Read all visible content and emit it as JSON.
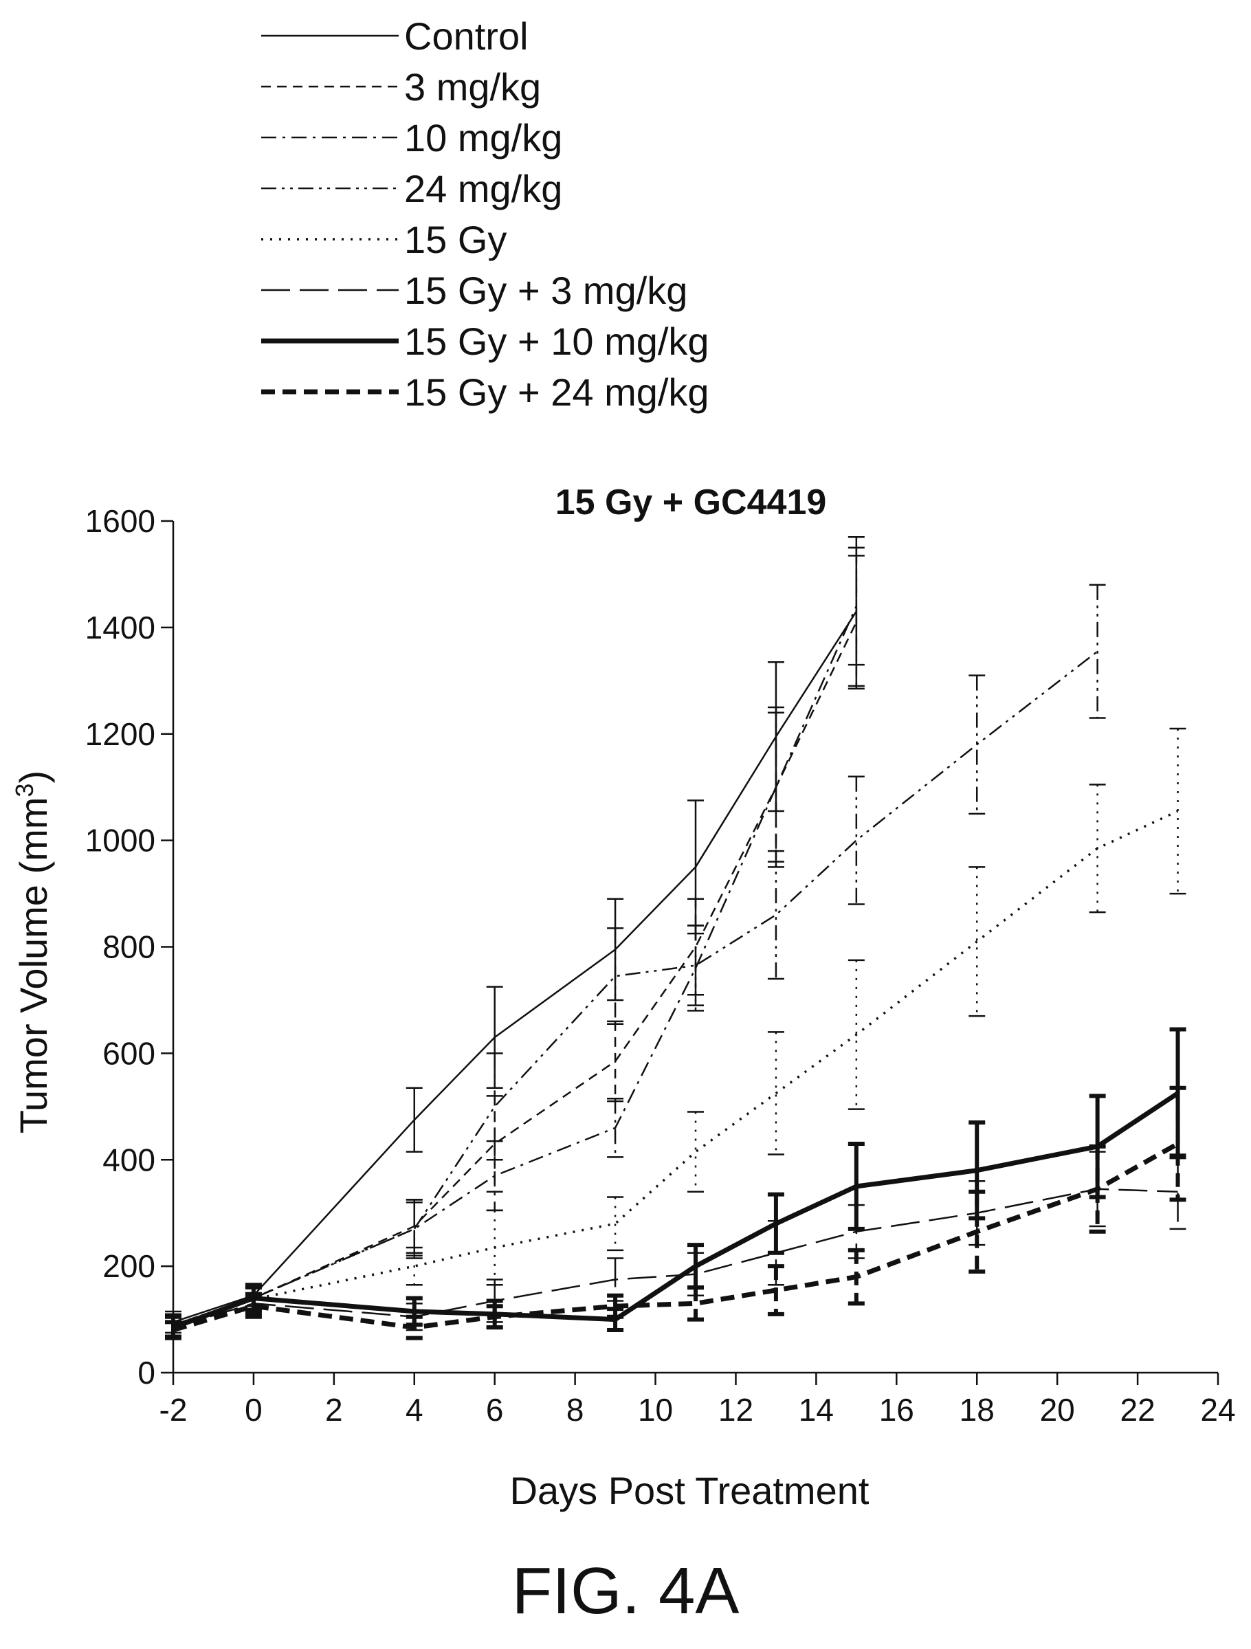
{
  "figure_label": "FIG. 4A",
  "chart_data": {
    "type": "line",
    "title": "15 Gy + GC4419",
    "xlabel": "Days Post Treatment",
    "ylabel": "Tumor Volume (mm",
    "ylabel_superscript": "3",
    "ylabel_close": ")",
    "xlim": [
      -2,
      24
    ],
    "ylim": [
      0,
      1600
    ],
    "xticks": [
      -2,
      0,
      2,
      4,
      6,
      8,
      10,
      12,
      14,
      16,
      18,
      20,
      22,
      24
    ],
    "yticks": [
      0,
      200,
      400,
      600,
      800,
      1000,
      1200,
      1400,
      1600
    ],
    "legend_position": "top",
    "series": [
      {
        "name": "Control",
        "line_style": "solid-thin",
        "x": [
          -2,
          0,
          4,
          6,
          9,
          11,
          13,
          15
        ],
        "y": [
          95,
          145,
          475,
          630,
          795,
          950,
          1195,
          1430
        ],
        "err": [
          20,
          20,
          60,
          95,
          95,
          125,
          140,
          140
        ]
      },
      {
        "name": "3  mg/kg",
        "line_style": "dashed",
        "x": [
          -2,
          0,
          4,
          6,
          9,
          11,
          13,
          15
        ],
        "y": [
          90,
          140,
          275,
          430,
          585,
          800,
          1100,
          1410
        ],
        "err": [
          20,
          20,
          50,
          90,
          75,
          90,
          150,
          125
        ]
      },
      {
        "name": "10 mg/kg",
        "line_style": "dash-dot",
        "x": [
          -2,
          0,
          4,
          6,
          9,
          11,
          13,
          15
        ],
        "y": [
          88,
          140,
          270,
          370,
          460,
          760,
          1100,
          1440
        ],
        "err": [
          20,
          20,
          55,
          65,
          55,
          80,
          140,
          110
        ]
      },
      {
        "name": "24 mg/kg",
        "line_style": "dash-dot-dot",
        "x": [
          -2,
          0,
          4,
          6,
          9,
          11,
          13,
          15,
          18,
          21,
          23
        ],
        "y": [
          90,
          140,
          270,
          500,
          745,
          765,
          860,
          1000,
          1180,
          1355,
          0
        ],
        "err": [
          20,
          20,
          50,
          100,
          90,
          75,
          120,
          120,
          130,
          125,
          0
        ],
        "points_shown": 10
      },
      {
        "name": "15 Gy",
        "line_style": "dotted",
        "x": [
          -2,
          0,
          4,
          6,
          9,
          11,
          13,
          15,
          18,
          21,
          23
        ],
        "y": [
          88,
          138,
          200,
          235,
          280,
          415,
          525,
          635,
          810,
          985,
          1055
        ],
        "err": [
          20,
          20,
          35,
          70,
          50,
          75,
          115,
          140,
          140,
          120,
          155
        ]
      },
      {
        "name": "15 Gy + 3  mg/kg",
        "line_style": "long-dash",
        "x": [
          -2,
          0,
          4,
          6,
          9,
          11,
          13,
          15,
          18,
          21,
          23
        ],
        "y": [
          85,
          130,
          105,
          135,
          175,
          185,
          225,
          265,
          300,
          345,
          340
        ],
        "err": [
          20,
          20,
          25,
          40,
          40,
          40,
          60,
          50,
          60,
          70,
          70
        ]
      },
      {
        "name": "15 Gy + 10 mg/kg",
        "line_style": "solid-thick",
        "x": [
          -2,
          0,
          4,
          6,
          9,
          11,
          13,
          15,
          18,
          21,
          23
        ],
        "y": [
          85,
          140,
          115,
          110,
          100,
          200,
          280,
          350,
          380,
          425,
          525
        ],
        "err": [
          20,
          25,
          25,
          25,
          20,
          40,
          55,
          80,
          90,
          95,
          120
        ]
      },
      {
        "name": "15 Gy + 24 mg/kg",
        "line_style": "dashed-thick",
        "x": [
          -2,
          0,
          4,
          6,
          9,
          11,
          13,
          15,
          18,
          21,
          23
        ],
        "y": [
          80,
          125,
          85,
          105,
          125,
          130,
          155,
          180,
          265,
          345,
          430
        ],
        "err": [
          15,
          20,
          20,
          20,
          20,
          30,
          45,
          50,
          75,
          80,
          105
        ]
      }
    ]
  }
}
